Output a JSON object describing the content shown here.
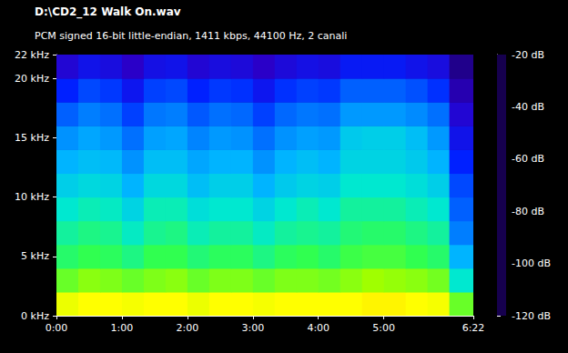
{
  "chart_data": {
    "type": "heatmap",
    "title": "D:\\CD2_12 Walk On.wav",
    "subtitle": "PCM signed 16-bit little-endian, 1411 kbps, 44100 Hz, 2 canali",
    "x_bins": [
      0,
      20,
      40,
      60,
      80,
      100,
      120,
      140,
      160,
      180,
      200,
      220,
      240,
      260,
      280,
      300,
      320,
      340,
      360,
      382
    ],
    "y_bins": [
      0,
      2,
      4,
      6,
      8,
      10,
      12,
      14,
      16,
      18,
      20,
      22
    ],
    "values": [
      [
        -42,
        -40,
        -40,
        -41,
        -40,
        -40,
        -42,
        -40,
        -40,
        -41,
        -40,
        -40,
        -40,
        -40,
        -39,
        -39,
        -40,
        -41,
        -55
      ],
      [
        -55,
        -52,
        -53,
        -55,
        -53,
        -52,
        -55,
        -53,
        -53,
        -55,
        -53,
        -53,
        -54,
        -52,
        -50,
        -51,
        -52,
        -54,
        -70
      ],
      [
        -62,
        -60,
        -61,
        -64,
        -60,
        -60,
        -63,
        -61,
        -61,
        -64,
        -61,
        -60,
        -62,
        -59,
        -58,
        -58,
        -60,
        -62,
        -80
      ],
      [
        -66,
        -64,
        -65,
        -69,
        -65,
        -64,
        -68,
        -66,
        -66,
        -69,
        -66,
        -65,
        -66,
        -63,
        -62,
        -62,
        -64,
        -66,
        -88
      ],
      [
        -70,
        -68,
        -69,
        -74,
        -68,
        -68,
        -72,
        -70,
        -70,
        -74,
        -70,
        -68,
        -70,
        -66,
        -66,
        -66,
        -68,
        -70,
        -92
      ],
      [
        -75,
        -73,
        -74,
        -80,
        -73,
        -73,
        -78,
        -75,
        -75,
        -80,
        -76,
        -74,
        -75,
        -70,
        -70,
        -70,
        -72,
        -75,
        -95
      ],
      [
        -80,
        -78,
        -79,
        -85,
        -78,
        -78,
        -82,
        -80,
        -80,
        -85,
        -80,
        -78,
        -80,
        -74,
        -74,
        -74,
        -76,
        -80,
        -100
      ],
      [
        -85,
        -82,
        -84,
        -90,
        -83,
        -82,
        -87,
        -84,
        -85,
        -90,
        -85,
        -83,
        -84,
        -76,
        -75,
        -75,
        -78,
        -84,
        -104
      ],
      [
        -92,
        -88,
        -90,
        -96,
        -89,
        -88,
        -93,
        -90,
        -91,
        -96,
        -91,
        -89,
        -90,
        -84,
        -84,
        -84,
        -86,
        -90,
        -108
      ],
      [
        -100,
        -95,
        -97,
        -103,
        -96,
        -95,
        -100,
        -97,
        -98,
        -103,
        -98,
        -96,
        -97,
        -92,
        -92,
        -92,
        -94,
        -98,
        -112
      ],
      [
        -108,
        -104,
        -106,
        -110,
        -105,
        -104,
        -108,
        -106,
        -107,
        -110,
        -107,
        -105,
        -106,
        -102,
        -102,
        -102,
        -104,
        -106,
        -115
      ]
    ],
    "xlim": [
      0,
      382
    ],
    "xticks": [
      {
        "value": 0,
        "label": "0:00"
      },
      {
        "value": 60,
        "label": "1:00"
      },
      {
        "value": 120,
        "label": "2:00"
      },
      {
        "value": 180,
        "label": "3:00"
      },
      {
        "value": 240,
        "label": "4:00"
      },
      {
        "value": 300,
        "label": "5:00"
      },
      {
        "value": 382,
        "label": "6:22"
      }
    ],
    "ylim": [
      0,
      22
    ],
    "yticks": [
      {
        "value": 0,
        "label": "0 kHz"
      },
      {
        "value": 5,
        "label": "5 kHz"
      },
      {
        "value": 10,
        "label": "10 kHz"
      },
      {
        "value": 15,
        "label": "15 kHz"
      },
      {
        "value": 20,
        "label": "20 kHz"
      },
      {
        "value": 22,
        "label": "22 kHz"
      }
    ],
    "colorbar": {
      "range": [
        -120,
        -20
      ],
      "ticks": [
        {
          "value": -20,
          "label": "-20 dB"
        },
        {
          "value": -40,
          "label": "-40 dB"
        },
        {
          "value": -60,
          "label": "-60 dB"
        },
        {
          "value": -80,
          "label": "-80 dB"
        },
        {
          "value": -100,
          "label": "-100 dB"
        },
        {
          "value": -120,
          "label": "-120 dB"
        }
      ]
    }
  }
}
